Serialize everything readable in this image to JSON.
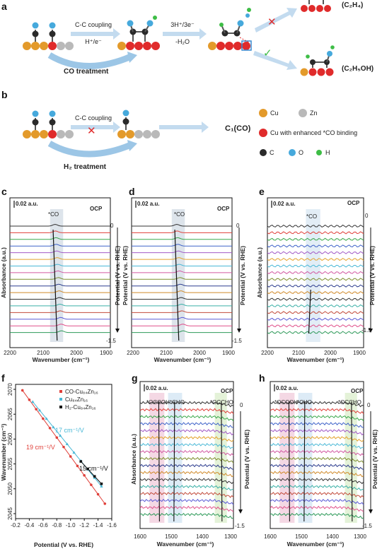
{
  "panel_a": {
    "label": "a",
    "step1_top": "C-C coupling",
    "step1_bottom": "H⁺/e⁻",
    "step2_top": "3H⁺/3e⁻",
    "step2_bottom": "-H₂O",
    "treatment": "CO treatment",
    "product_upper": "(C₂H₄)",
    "product_lower": "(C₂H₅OH)"
  },
  "panel_b": {
    "label": "b",
    "step_top": "C-C coupling",
    "treatment": "H₂ treatment",
    "product": "C₁(CO)"
  },
  "legend": {
    "cu": "Cu",
    "zn": "Zn",
    "cu_enhanced": "Cu with enhanced *CO binding",
    "c": "C",
    "o": "O",
    "h": "H",
    "colors": {
      "cu": "#e39a2b",
      "zn": "#b9b9b9",
      "cu_enhanced": "#e02b2b",
      "c": "#2a2a2a",
      "o": "#46a9dc",
      "h": "#3ebd46"
    }
  },
  "spectra_colors": [
    "#333333",
    "#e0403a",
    "#3aa84a",
    "#3f63c9",
    "#a25ac6",
    "#e3a22b",
    "#49b8d6",
    "#d25aa2",
    "#7f8f2f",
    "#2f3f8f",
    "#d08a2a",
    "#333333",
    "#3ab0a6",
    "#c24a3a",
    "#5a5ad6",
    "#e0508a",
    "#2f9a5a",
    "#c2508a"
  ],
  "panel_c": {
    "label": "c",
    "scale": "0.02 a.u.",
    "ocp": "OCP",
    "peak": "*CO",
    "top_value": "0",
    "bottom_value": "-1.5",
    "xlabel": "Wavenumber (cm⁻¹)",
    "ylabel": "Absorbance (a.u.)",
    "right_label": "Potential (V vs. RHE)",
    "xticks": [
      "2200",
      "2100",
      "2000",
      "1900"
    ]
  },
  "panel_d": {
    "label": "d",
    "scale": "0.02 a.u.",
    "ocp": "OCP",
    "peak": "*CO",
    "top_value": "0",
    "bottom_value": "-1.5",
    "xlabel": "Wavenumber (cm⁻¹)",
    "right_label": "Potential (V vs. RHE)",
    "xticks": [
      "2200",
      "2100",
      "2000",
      "1900"
    ]
  },
  "panel_e": {
    "label": "e",
    "scale": "0.02 a.u.",
    "ocp": "OCP",
    "peak": "*CO",
    "top_value": "0",
    "bottom_value": "-1.5",
    "xlabel": "Wavenumber (cm⁻¹)",
    "ylabel": "Absorbance (a.u.)",
    "right_label": "Potential (V vs. RHE)",
    "xticks": [
      "2200",
      "2100",
      "2000",
      "1900"
    ]
  },
  "panel_g": {
    "label": "g",
    "scale": "0.02 a.u.",
    "ocp": "OCP",
    "peak1": "*OCCOH",
    "peak2": "*CHO",
    "peak3": "*OCCHO",
    "top_value": "0",
    "bottom_value": "-1.5",
    "xlabel": "Wavenumber (cm⁻¹)",
    "ylabel": "Absorbance (a.u.)",
    "right_label": "Potential (V vs. RHE)",
    "xticks": [
      "1600",
      "1500",
      "1400",
      "1300"
    ]
  },
  "panel_h": {
    "label": "h",
    "scale": "0.02 a.u.",
    "ocp": "OCP",
    "peak1": "*OCCOH",
    "peak2": "*CHO",
    "peak3": "*OCCHO",
    "top_value": "0",
    "bottom_value": "-1.5",
    "xlabel": "Wavenumber (cm⁻¹)",
    "right_label": "Potential (V vs. RHE)",
    "xticks": [
      "1600",
      "1500",
      "1400",
      "1300"
    ]
  },
  "chart_data": {
    "type": "scatter",
    "label": "f",
    "xlabel": "Potential (V vs. RHE)",
    "ylabel": "Wavenumber (cm⁻¹)",
    "xlim": [
      -0.2,
      -1.6
    ],
    "ylim": [
      2044,
      2071
    ],
    "xticks": [
      "-0.2",
      "-0.4",
      "-0.6",
      "-0.8",
      "-1.0",
      "-1.2",
      "-1.4",
      "-1.6"
    ],
    "yticks": [
      "2045",
      "2050",
      "2055",
      "2060",
      "2065",
      "2070"
    ],
    "series": [
      {
        "name": "CO-Cu₈₄Zn₁₆",
        "color": "#e0403a",
        "slope_label": "19 cm⁻¹/V",
        "x": [
          -0.3,
          -0.4,
          -0.5,
          -0.6,
          -0.7,
          -0.8,
          -0.9,
          -1.0,
          -1.1,
          -1.2,
          -1.3,
          -1.4,
          -1.5
        ],
        "y": [
          2069.8,
          2067.9,
          2066.0,
          2064.1,
          2062.2,
          2060.3,
          2058.4,
          2056.5,
          2054.6,
          2052.7,
          2050.8,
          2048.9,
          2047.0
        ]
      },
      {
        "name": "Cu₈₄Zn₁₆",
        "color": "#49b8d6",
        "slope_label": "17 cm⁻¹/V",
        "x": [
          -0.45,
          -0.55,
          -0.65,
          -0.75,
          -0.85,
          -0.95,
          -1.05,
          -1.15,
          -1.25,
          -1.35,
          -1.45
        ],
        "y": [
          2067.5,
          2065.8,
          2064.1,
          2062.4,
          2060.7,
          2059.0,
          2057.3,
          2055.6,
          2053.9,
          2052.2,
          2050.5
        ]
      },
      {
        "name": "H₂-Cu₈₄Zn₁₆",
        "color": "#111111",
        "slope_label": "15 cm⁻¹/V",
        "x": [
          -1.15,
          -1.25,
          -1.35,
          -1.45
        ],
        "y": [
          2055.5,
          2054.0,
          2052.5,
          2051.0
        ]
      }
    ]
  }
}
